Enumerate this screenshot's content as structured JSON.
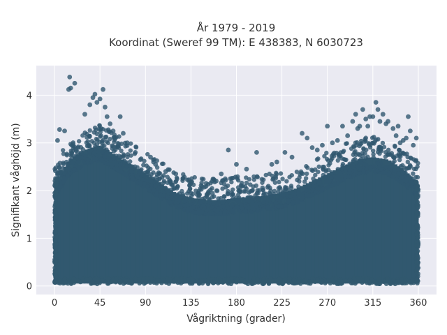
{
  "chart_data": {
    "type": "scatter",
    "title": "År 1979 - 2019",
    "subtitle": "Koordinat (Sweref 99 TM): E 438383, N 6030723",
    "xlabel": "Vågriktning (grader)",
    "ylabel": "Signifikant våghöjd (m)",
    "xlim": [
      -18,
      378
    ],
    "ylim": [
      -0.18,
      4.62
    ],
    "xticks": [
      0,
      45,
      90,
      135,
      180,
      225,
      270,
      315,
      360
    ],
    "xtick_labels": [
      "0",
      "45",
      "90",
      "135",
      "180",
      "225",
      "270",
      "315",
      "360"
    ],
    "yticks": [
      0,
      1,
      2,
      3,
      4
    ],
    "ytick_labels": [
      "0",
      "1",
      "2",
      "3",
      "4"
    ],
    "grid": true,
    "background": "#eaeaf2",
    "marker_color": "#31586f",
    "dense_envelope": {
      "x": [
        0,
        15,
        30,
        45,
        60,
        75,
        90,
        105,
        120,
        135,
        150,
        165,
        180,
        195,
        210,
        225,
        240,
        255,
        270,
        285,
        300,
        315,
        330,
        345,
        360
      ],
      "upper": [
        2.2,
        2.7,
        2.9,
        3.0,
        2.8,
        2.6,
        2.4,
        2.2,
        2.0,
        1.9,
        1.85,
        1.85,
        1.9,
        1.9,
        1.95,
        2.0,
        2.1,
        2.25,
        2.4,
        2.55,
        2.7,
        2.75,
        2.7,
        2.5,
        2.2
      ],
      "lower": 0.05
    },
    "outliers": {
      "x": [
        15,
        16,
        14,
        20,
        5,
        3,
        10,
        30,
        35,
        38,
        40,
        42,
        45,
        48,
        50,
        52,
        55,
        58,
        60,
        65,
        68,
        72,
        80,
        85,
        95,
        100,
        110,
        120,
        127,
        135,
        150,
        160,
        165,
        172,
        180,
        190,
        200,
        215,
        220,
        228,
        235,
        245,
        250,
        255,
        260,
        265,
        270,
        275,
        280,
        285,
        290,
        295,
        298,
        300,
        302,
        305,
        308,
        310,
        312,
        315,
        318,
        320,
        322,
        325,
        328,
        330,
        335,
        338,
        340,
        342,
        345,
        348,
        350,
        352,
        355,
        358
      ],
      "y": [
        4.38,
        4.15,
        4.12,
        4.25,
        3.28,
        3.05,
        3.25,
        3.6,
        3.8,
        3.95,
        4.02,
        3.85,
        3.92,
        4.12,
        3.75,
        3.55,
        3.4,
        3.25,
        3.1,
        3.55,
        3.2,
        3.0,
        2.8,
        2.65,
        2.7,
        2.55,
        2.4,
        2.35,
        2.25,
        2.15,
        2.15,
        2.2,
        2.35,
        2.85,
        2.55,
        2.45,
        2.8,
        2.55,
        2.6,
        2.8,
        2.7,
        3.2,
        3.1,
        2.9,
        2.85,
        2.95,
        3.35,
        3.0,
        3.05,
        3.35,
        3.15,
        3.45,
        3.6,
        3.3,
        3.35,
        3.7,
        3.5,
        3.35,
        3.55,
        3.55,
        3.85,
        3.7,
        3.45,
        3.6,
        3.4,
        3.45,
        3.3,
        3.15,
        3.35,
        3.0,
        3.05,
        3.1,
        3.55,
        3.25,
        2.95,
        3.1
      ]
    }
  }
}
